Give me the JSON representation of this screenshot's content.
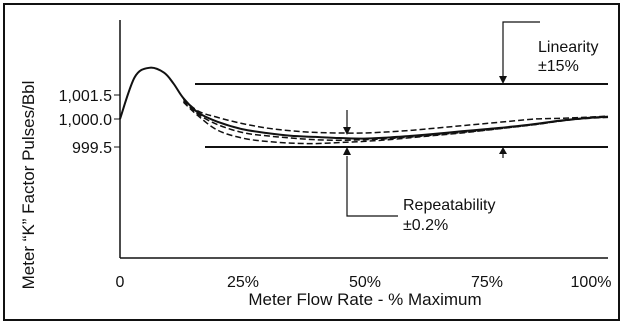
{
  "chart_data": {
    "type": "line",
    "xlabel": "Meter Flow Rate - % Maximum",
    "ylabel": "Meter “K” Factor Pulses/Bbl",
    "x_ticks": [
      "0",
      "25%",
      "50%",
      "75%",
      "100%"
    ],
    "x_tick_values": [
      0,
      25,
      50,
      75,
      100
    ],
    "y_ticks": [
      "1,001.5",
      "1,000.0",
      "999.5"
    ],
    "y_tick_values": [
      1001.5,
      1000.0,
      999.5
    ],
    "xlim": [
      0,
      100
    ],
    "grid": false,
    "reference_lines": [
      {
        "name": "linearity-upper-limit",
        "y": 1001.5,
        "x_range": [
          13,
          100
        ]
      },
      {
        "name": "linearity-lower-limit",
        "y": 999.5,
        "x_range": [
          15,
          100
        ]
      }
    ],
    "series": [
      {
        "style": "solid",
        "x": [
          0,
          3,
          6,
          9,
          11,
          13,
          16,
          20,
          25,
          30,
          35,
          40,
          45,
          50,
          55,
          60,
          65,
          70,
          75,
          80,
          85,
          90,
          95,
          100
        ],
        "y": [
          1000.0,
          1002.6,
          1003.2,
          1002.9,
          1002.2,
          1001.3,
          1000.4,
          999.95,
          999.82,
          999.75,
          999.7,
          999.68,
          999.66,
          999.65,
          999.67,
          999.7,
          999.74,
          999.78,
          999.82,
          999.86,
          999.91,
          999.97,
          1000.05,
          1000.15
        ]
      },
      {
        "style": "dashed",
        "x": [
          13,
          16,
          20,
          25,
          30,
          35,
          40,
          45,
          50,
          55,
          60,
          65,
          70,
          75,
          80,
          85,
          90,
          95,
          100
        ],
        "y": [
          1001.25,
          1000.5,
          1000.1,
          999.92,
          999.84,
          999.79,
          999.76,
          999.75,
          999.75,
          999.77,
          999.8,
          999.84,
          999.88,
          999.92,
          999.96,
          1000.0,
          1000.04,
          1000.1,
          1000.18
        ]
      },
      {
        "style": "dashed",
        "x": [
          13,
          16,
          20,
          25,
          30,
          35,
          40,
          45,
          50,
          55,
          60,
          65,
          70,
          75,
          80,
          85,
          90,
          95,
          100
        ],
        "y": [
          1001.15,
          1000.3,
          999.9,
          999.76,
          999.7,
          999.66,
          999.63,
          999.62,
          999.63,
          999.65,
          999.68,
          999.72,
          999.76,
          999.8,
          999.85,
          999.9,
          999.96,
          1000.03,
          1000.12
        ]
      },
      {
        "style": "dashed",
        "x": [
          13,
          16,
          20,
          25,
          30,
          35,
          40,
          45,
          50,
          55,
          60,
          65,
          70,
          75,
          80,
          85,
          90,
          95,
          100
        ],
        "y": [
          1001.05,
          1000.2,
          999.8,
          999.66,
          999.6,
          999.57,
          999.56,
          999.58,
          999.6,
          999.63,
          999.67,
          999.71,
          999.75,
          999.8,
          999.85,
          999.9,
          999.96,
          1000.02,
          1000.1
        ]
      }
    ],
    "annotations": [
      {
        "line1": "Linearity",
        "line2": "±15%"
      },
      {
        "line1": "Repeatability",
        "line2": "±0.2%"
      }
    ]
  }
}
